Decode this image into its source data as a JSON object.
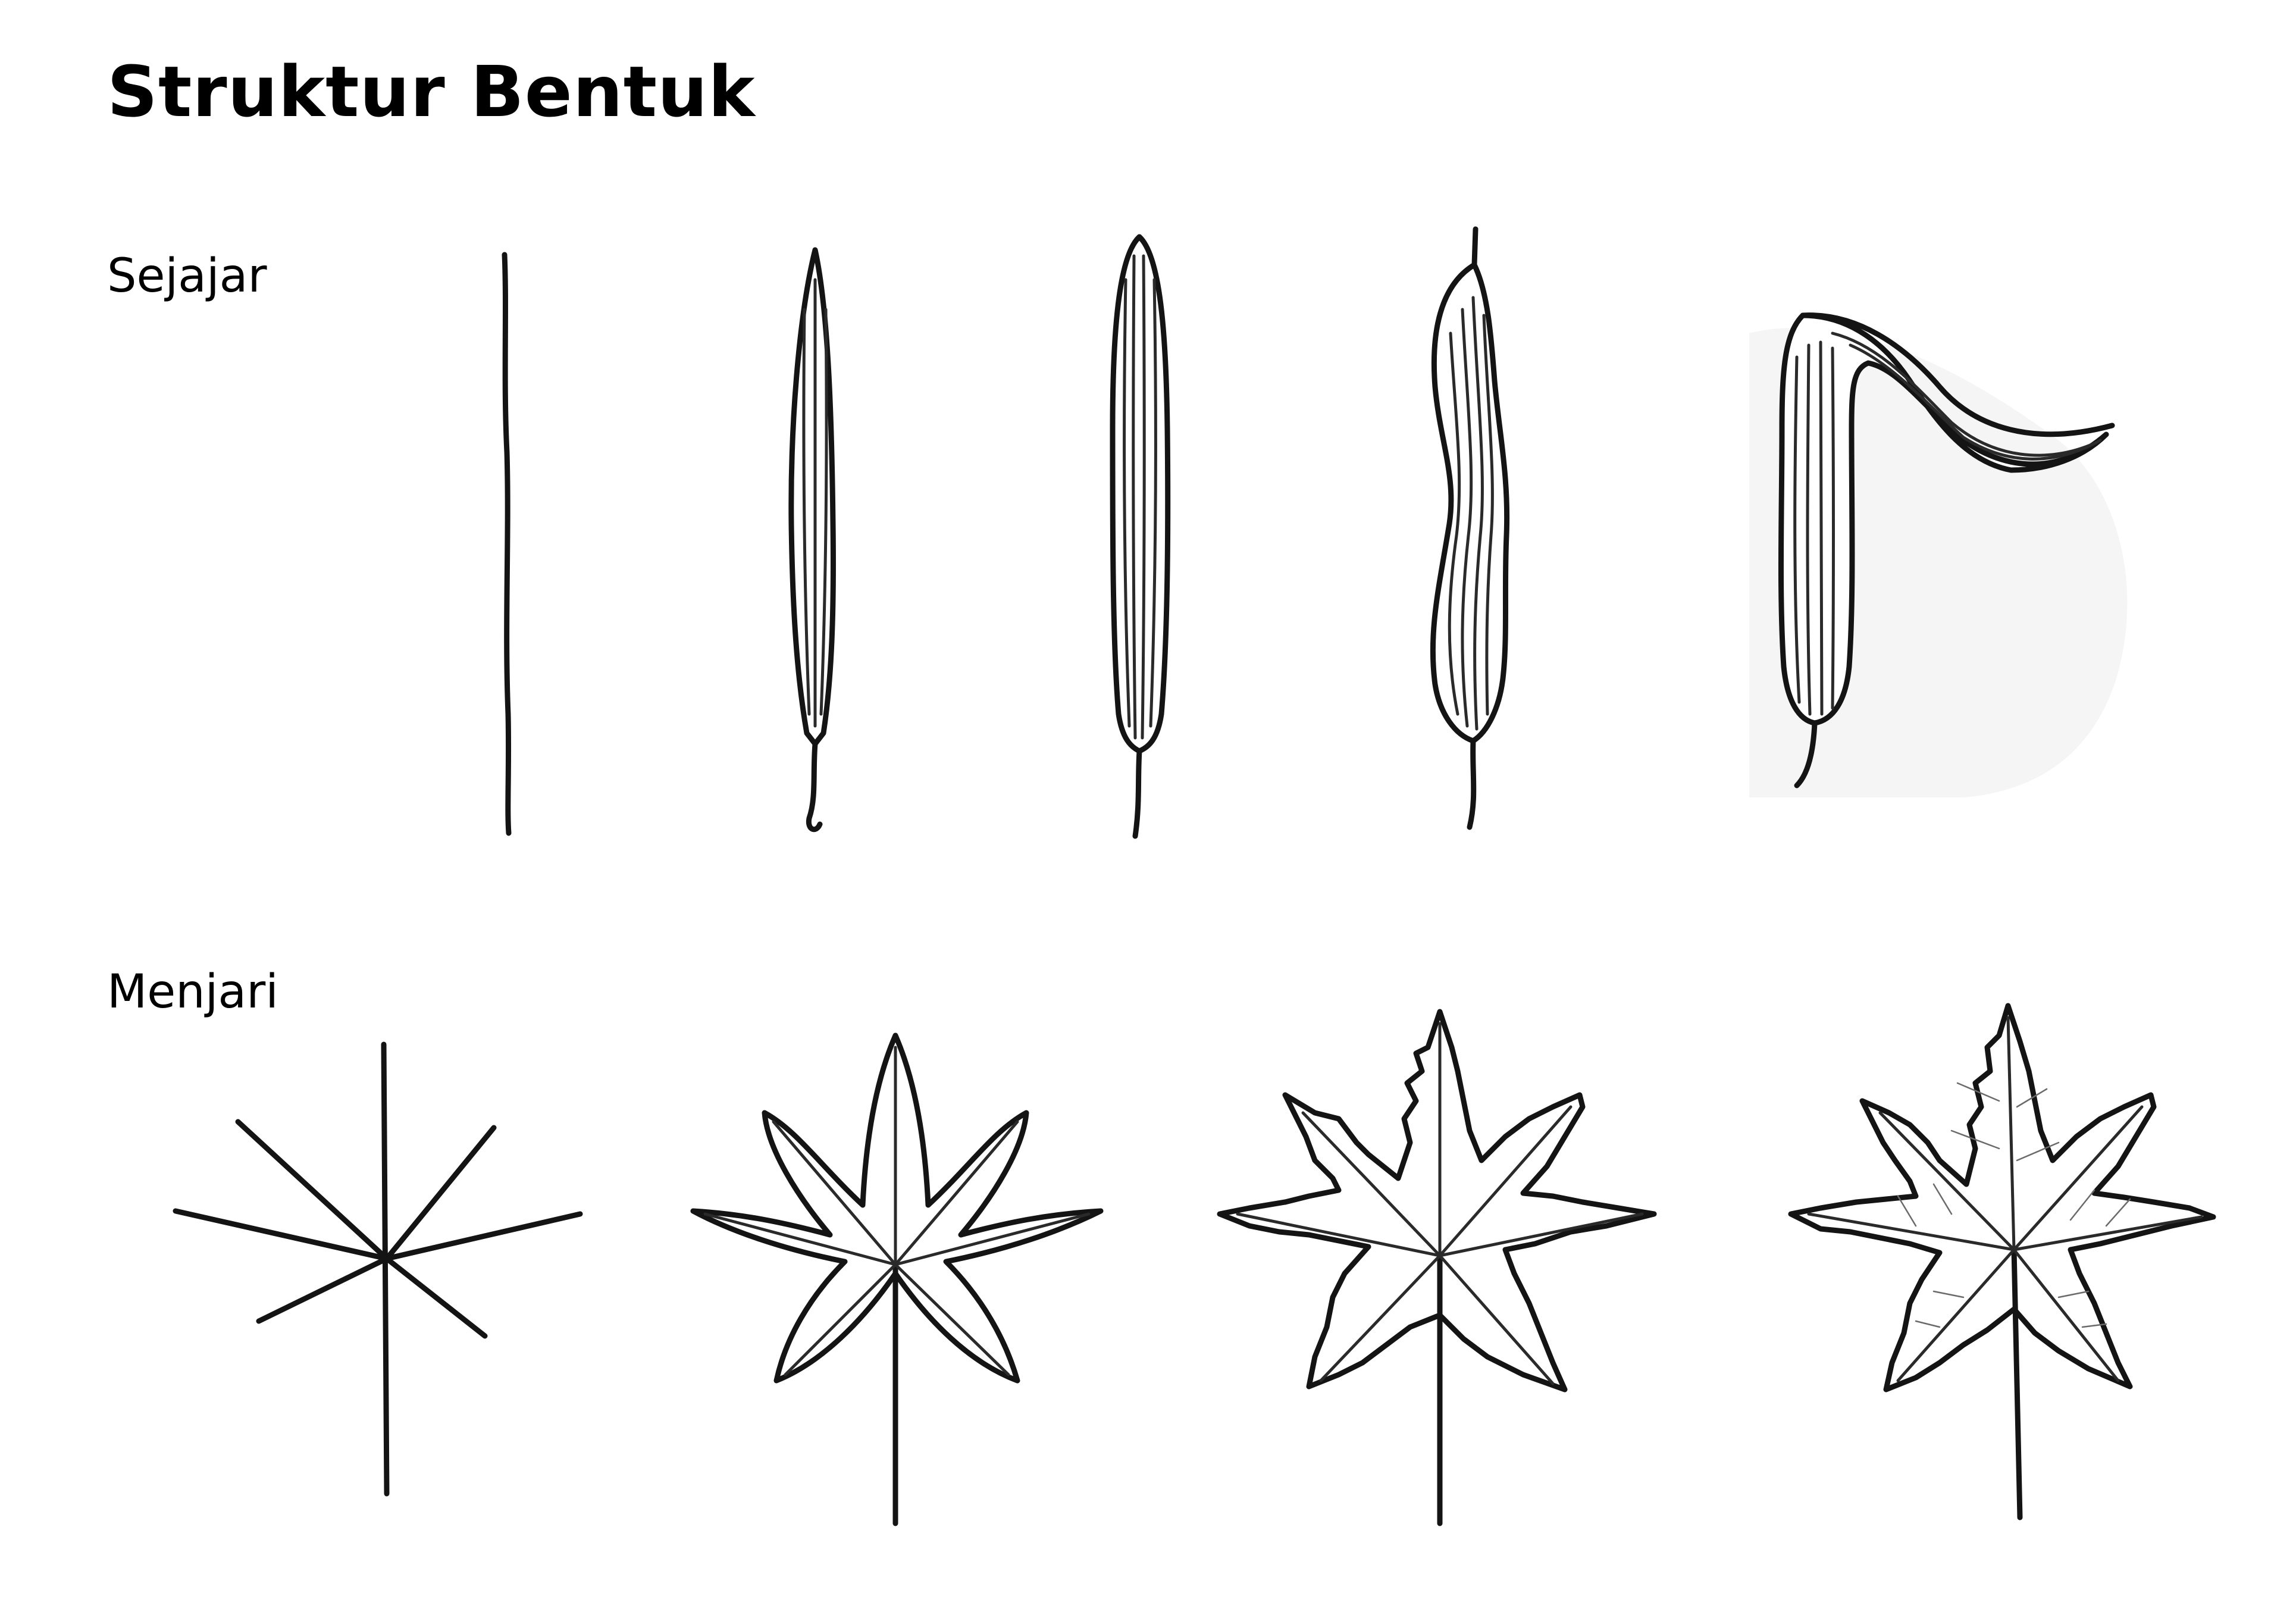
{
  "title": "Struktur Bentuk",
  "sections": [
    {
      "label": "Sejajar",
      "stages": 5
    },
    {
      "label": "Menjari",
      "stages": 4
    }
  ],
  "colors": {
    "ink": "#141414",
    "paper": "#ffffff"
  }
}
